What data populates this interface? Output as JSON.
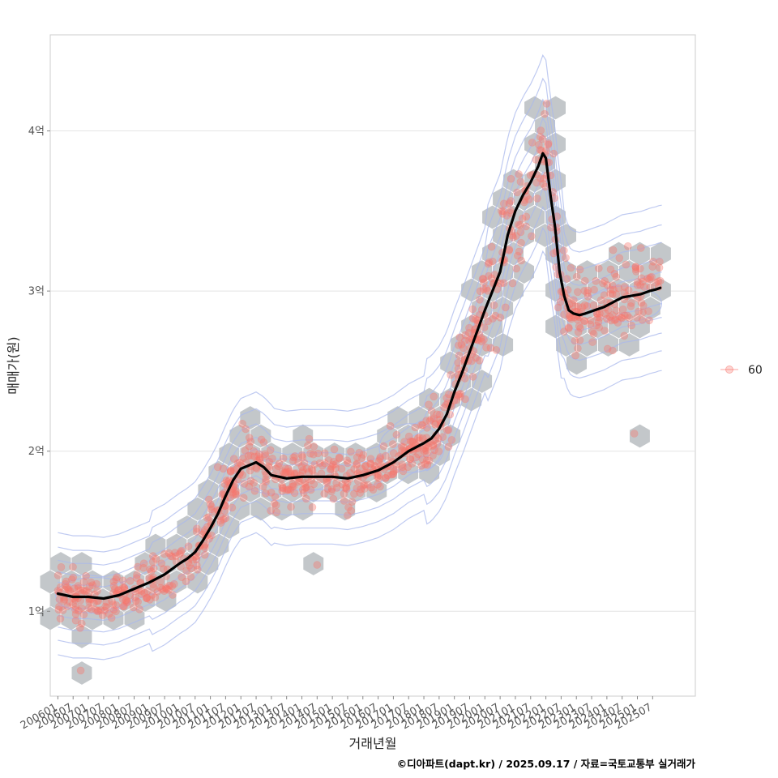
{
  "chart_data": {
    "type": "scatter",
    "xlabel": "거래년월",
    "ylabel": "매매가(원)",
    "credit": "©디아파트(dapt.kr) / 2025.09.17 / 자료=국토교통부 실거래가",
    "legend": {
      "position": "right",
      "entries": [
        "60"
      ]
    },
    "grid": true,
    "xlim": [
      2005.75,
      2026.9
    ],
    "ylim": [
      0.47,
      4.6
    ],
    "y_unit": "억",
    "y_ticks": [
      {
        "value": 1,
        "label": "1억"
      },
      {
        "value": 2,
        "label": "2억"
      },
      {
        "value": 3,
        "label": "3억"
      },
      {
        "value": 4,
        "label": "4억"
      }
    ],
    "x_ticks": [
      "200601",
      "200607",
      "200701",
      "200707",
      "200801",
      "200807",
      "200901",
      "200907",
      "201001",
      "201007",
      "201101",
      "201107",
      "201201",
      "201207",
      "201301",
      "201307",
      "201401",
      "201407",
      "201501",
      "201507",
      "201601",
      "201607",
      "201701",
      "201707",
      "201801",
      "201807",
      "201901",
      "201907",
      "202001",
      "202007",
      "202101",
      "202107",
      "202201",
      "202207",
      "202301",
      "202307",
      "202401",
      "202407",
      "202501",
      "202507"
    ],
    "trend_line": {
      "x": [
        2006.0,
        2006.5,
        2007.0,
        2007.5,
        2008.0,
        2008.5,
        2009.0,
        2009.5,
        2010.0,
        2010.25,
        2010.5,
        2010.75,
        2011.0,
        2011.25,
        2011.5,
        2011.75,
        2012.0,
        2012.25,
        2012.5,
        2012.75,
        2013.0,
        2013.5,
        2014.0,
        2014.5,
        2015.0,
        2015.5,
        2016.0,
        2016.5,
        2017.0,
        2017.5,
        2018.0,
        2018.25,
        2018.5,
        2018.75,
        2019.0,
        2019.25,
        2019.5,
        2019.75,
        2020.0,
        2020.25,
        2020.5,
        2020.75,
        2021.0,
        2021.25,
        2021.5,
        2021.75,
        2021.9,
        2022.0,
        2022.15,
        2022.3,
        2022.45,
        2022.6,
        2022.75,
        2022.9,
        2023.1,
        2023.3,
        2023.6,
        2023.9,
        2024.2,
        2024.5,
        2024.8,
        2025.1,
        2025.4,
        2025.6,
        2025.75
      ],
      "y": [
        1.11,
        1.09,
        1.09,
        1.08,
        1.1,
        1.14,
        1.18,
        1.23,
        1.3,
        1.33,
        1.37,
        1.44,
        1.52,
        1.61,
        1.72,
        1.82,
        1.89,
        1.91,
        1.93,
        1.9,
        1.85,
        1.83,
        1.84,
        1.84,
        1.84,
        1.83,
        1.85,
        1.88,
        1.93,
        2.0,
        2.05,
        2.08,
        2.14,
        2.23,
        2.37,
        2.49,
        2.62,
        2.75,
        2.88,
        3.0,
        3.12,
        3.35,
        3.5,
        3.6,
        3.68,
        3.78,
        3.86,
        3.83,
        3.6,
        3.4,
        3.12,
        2.97,
        2.88,
        2.86,
        2.85,
        2.86,
        2.88,
        2.9,
        2.93,
        2.96,
        2.97,
        2.98,
        3.0,
        3.01,
        3.02
      ]
    }
  }
}
